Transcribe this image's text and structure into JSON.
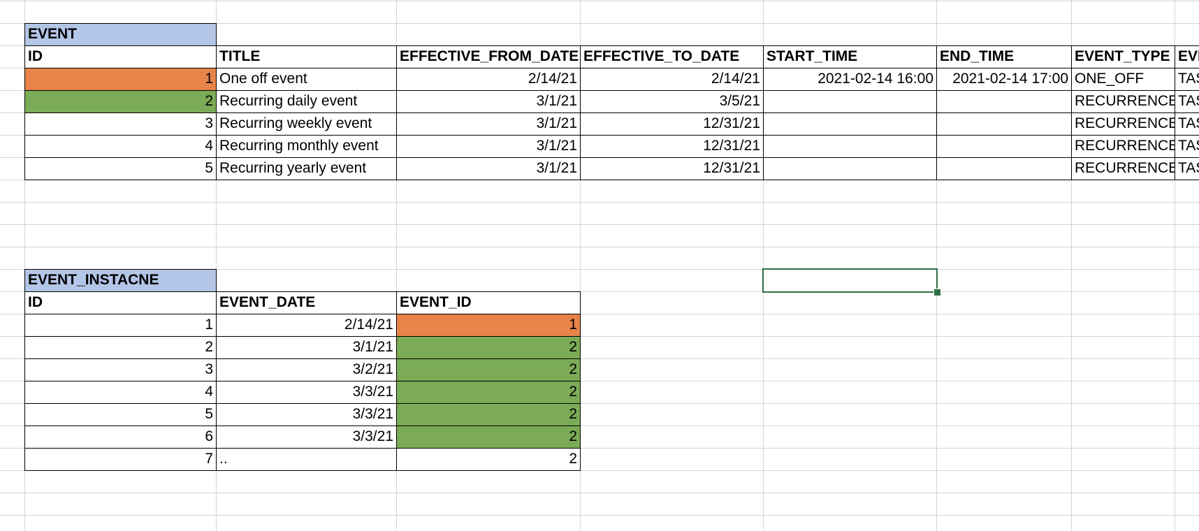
{
  "colors": {
    "title_fill": "#b4c6e7",
    "orange_fill": "#e8834a",
    "green_fill": "#7bab56",
    "gridline": "#d4d4d4",
    "border": "#000000",
    "selection": "#2f6f45"
  },
  "event_table": {
    "title": "EVENT",
    "headers": [
      "ID",
      "TITLE",
      "EFFECTIVE_FROM_DATE",
      "EFFECTIVE_TO_DATE",
      "START_TIME",
      "END_TIME",
      "EVENT_TYPE",
      "EVE"
    ],
    "rows": [
      [
        "1",
        "One off event",
        "2/14/21",
        "2/14/21",
        "2021-02-14  16:00",
        "2021-02-14  17:00",
        "ONE_OFF",
        "TAS"
      ],
      [
        "2",
        "Recurring daily event",
        "3/1/21",
        "3/5/21",
        "",
        "",
        "RECURRENCE",
        "TAS"
      ],
      [
        "3",
        "Recurring weekly event",
        "3/1/21",
        "12/31/21",
        "",
        "",
        "RECURRENCE",
        "TAS"
      ],
      [
        "4",
        "Recurring monthly event",
        "3/1/21",
        "12/31/21",
        "",
        "",
        "RECURRENCE",
        "TAS"
      ],
      [
        "5",
        "Recurring yearly event",
        "3/1/21",
        "12/31/21",
        "",
        "",
        "RECURRENCE",
        "TAS"
      ]
    ]
  },
  "instance_table": {
    "title": "EVENT_INSTACNE",
    "headers": [
      "ID",
      "EVENT_DATE",
      "EVENT_ID"
    ],
    "rows": [
      [
        "1",
        "2/14/21",
        "1"
      ],
      [
        "2",
        "3/1/21",
        "2"
      ],
      [
        "3",
        "3/2/21",
        "2"
      ],
      [
        "4",
        "3/3/21",
        "2"
      ],
      [
        "5",
        "3/3/21",
        "2"
      ],
      [
        "6",
        "3/3/21",
        "2"
      ],
      [
        "7",
        "..",
        "2"
      ]
    ]
  }
}
